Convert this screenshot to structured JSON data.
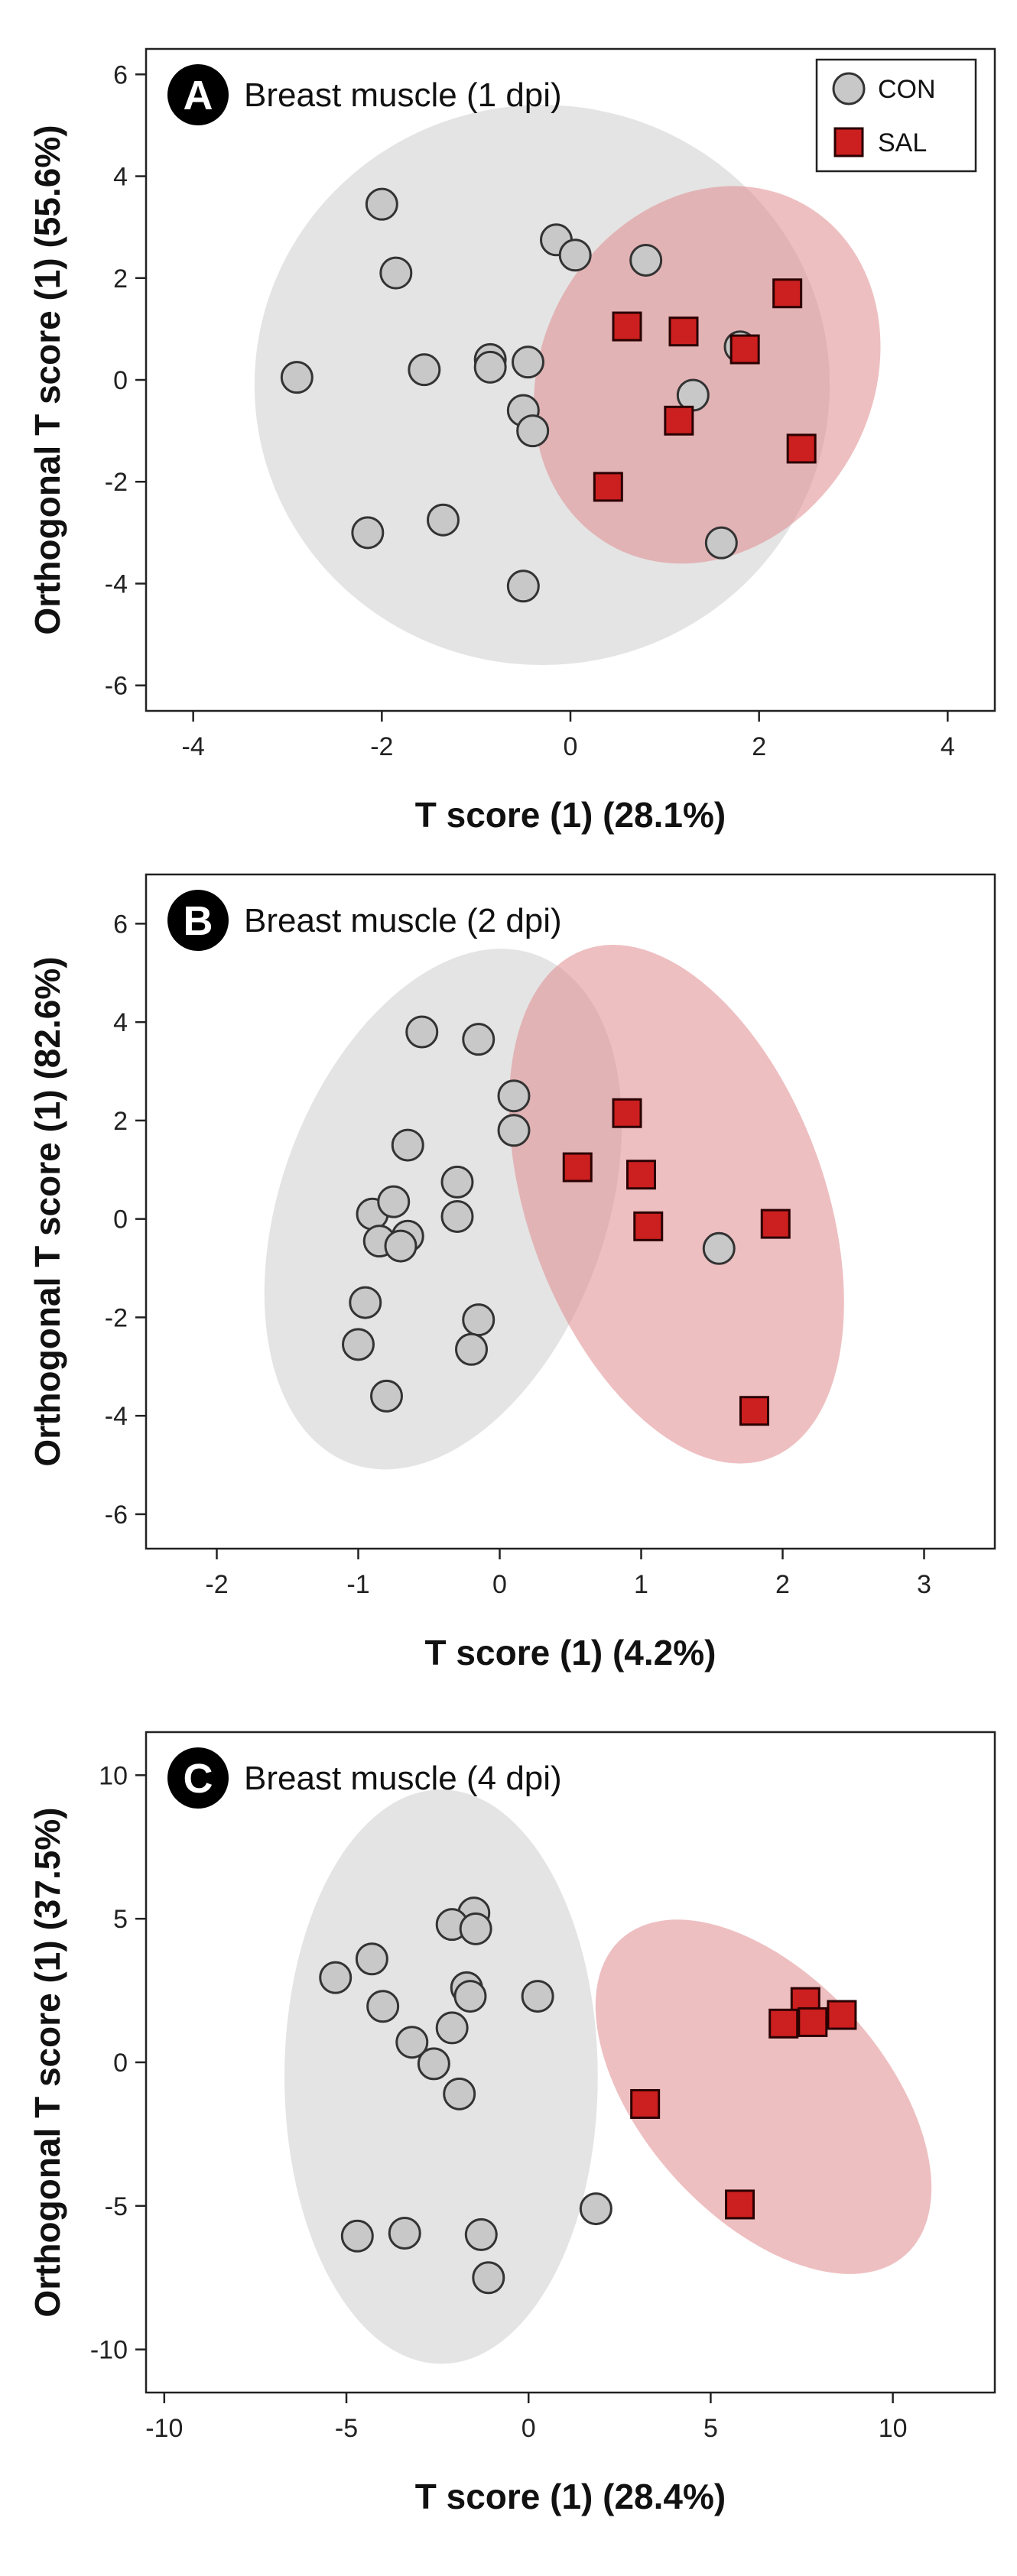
{
  "colors": {
    "con_fill": "#c8c8c8",
    "con_stroke": "#333333",
    "sal_fill": "#cc1f1f",
    "sal_stroke": "#2a0000",
    "con_ellipse": "#d4d4d4",
    "sal_ellipse": "#e08a8e"
  },
  "legend": {
    "items": [
      {
        "label": "CON",
        "marker": "circle"
      },
      {
        "label": "SAL",
        "marker": "square"
      }
    ]
  },
  "chart_data": [
    {
      "type": "scatter",
      "letter": "A",
      "title": "Breast muscle (1 dpi)",
      "xlabel": "T score (1) (28.1%)",
      "ylabel": "Orthogonal T score (1) (55.6%)",
      "xlim": [
        -4.5,
        4.5
      ],
      "ylim": [
        -6.5,
        6.5
      ],
      "xticks": [
        -4,
        -2,
        0,
        2,
        4
      ],
      "yticks": [
        -6,
        -4,
        -2,
        0,
        2,
        4,
        6
      ],
      "grid": false,
      "legend_position": "top-right",
      "series": [
        {
          "name": "CON",
          "marker": "circle",
          "points": [
            [
              -2.0,
              3.45
            ],
            [
              -1.85,
              2.1
            ],
            [
              -0.15,
              2.75
            ],
            [
              0.05,
              2.45
            ],
            [
              0.8,
              2.35
            ],
            [
              -2.9,
              0.05
            ],
            [
              -1.55,
              0.2
            ],
            [
              -0.85,
              0.4
            ],
            [
              -0.85,
              0.25
            ],
            [
              -0.45,
              0.35
            ],
            [
              -0.5,
              -0.6
            ],
            [
              -0.4,
              -1.0
            ],
            [
              1.3,
              -0.3
            ],
            [
              1.8,
              0.65
            ],
            [
              -2.15,
              -3.0
            ],
            [
              -1.35,
              -2.75
            ],
            [
              -0.5,
              -4.05
            ],
            [
              1.6,
              -3.2
            ]
          ]
        },
        {
          "name": "SAL",
          "marker": "square",
          "points": [
            [
              0.6,
              1.05
            ],
            [
              1.2,
              0.95
            ],
            [
              1.85,
              0.6
            ],
            [
              2.3,
              1.7
            ],
            [
              1.15,
              -0.8
            ],
            [
              2.45,
              -1.35
            ],
            [
              0.4,
              -2.1
            ]
          ]
        }
      ],
      "ellipses": [
        {
          "group": "CON",
          "cx": -0.3,
          "cy": -0.1,
          "rx": 3.05,
          "ry": 5.5,
          "angle": 0
        },
        {
          "group": "SAL",
          "cx": 1.45,
          "cy": 0.1,
          "rx": 1.75,
          "ry": 3.85,
          "angle": 30
        }
      ]
    },
    {
      "type": "scatter",
      "letter": "B",
      "title": "Breast muscle (2 dpi)",
      "xlabel": "T score (1) (4.2%)",
      "ylabel": "Orthogonal T score (1) (82.6%)",
      "xlim": [
        -2.5,
        3.5
      ],
      "ylim": [
        -6.7,
        7.0
      ],
      "xticks": [
        -2,
        -1,
        0,
        1,
        2,
        3
      ],
      "yticks": [
        -6,
        -4,
        -2,
        0,
        2,
        4,
        6
      ],
      "grid": false,
      "legend_position": "none",
      "series": [
        {
          "name": "CON",
          "marker": "circle",
          "points": [
            [
              -0.55,
              3.8
            ],
            [
              -0.15,
              3.65
            ],
            [
              0.1,
              2.5
            ],
            [
              0.1,
              1.8
            ],
            [
              -0.65,
              1.5
            ],
            [
              -0.3,
              0.75
            ],
            [
              -0.9,
              0.1
            ],
            [
              -0.75,
              0.35
            ],
            [
              -0.65,
              -0.35
            ],
            [
              -0.3,
              0.05
            ],
            [
              -0.85,
              -0.45
            ],
            [
              -0.7,
              -0.55
            ],
            [
              1.55,
              -0.6
            ],
            [
              -0.95,
              -1.7
            ],
            [
              -1.0,
              -2.55
            ],
            [
              -0.15,
              -2.05
            ],
            [
              -0.2,
              -2.65
            ],
            [
              -0.8,
              -3.6
            ]
          ]
        },
        {
          "name": "SAL",
          "marker": "square",
          "points": [
            [
              0.9,
              2.15
            ],
            [
              0.55,
              1.05
            ],
            [
              1.0,
              0.9
            ],
            [
              1.05,
              -0.15
            ],
            [
              1.95,
              -0.1
            ],
            [
              1.8,
              -3.9
            ]
          ]
        }
      ],
      "ellipses": [
        {
          "group": "CON",
          "cx": -0.4,
          "cy": 0.2,
          "rx": 1.15,
          "ry": 5.5,
          "angle": 20
        },
        {
          "group": "SAL",
          "cx": 1.25,
          "cy": 0.3,
          "rx": 1.05,
          "ry": 5.5,
          "angle": -20
        }
      ]
    },
    {
      "type": "scatter",
      "letter": "C",
      "title": "Breast muscle (4 dpi)",
      "xlabel": "T score (1) (28.4%)",
      "ylabel": "Orthogonal T score (1) (37.5%)",
      "xlim": [
        -10.5,
        12.8
      ],
      "ylim": [
        -11.5,
        11.5
      ],
      "xticks": [
        -10,
        -5,
        0,
        5,
        10
      ],
      "yticks": [
        -10,
        -5,
        0,
        5,
        10
      ],
      "grid": false,
      "legend_position": "none",
      "series": [
        {
          "name": "CON",
          "marker": "circle",
          "points": [
            [
              -1.5,
              5.2
            ],
            [
              -2.1,
              4.8
            ],
            [
              -1.45,
              4.65
            ],
            [
              -4.3,
              3.6
            ],
            [
              -5.3,
              2.95
            ],
            [
              -1.7,
              2.6
            ],
            [
              -1.6,
              2.3
            ],
            [
              0.25,
              2.3
            ],
            [
              -4.0,
              1.95
            ],
            [
              -2.1,
              1.2
            ],
            [
              -3.2,
              0.7
            ],
            [
              -2.6,
              -0.05
            ],
            [
              -1.9,
              -1.1
            ],
            [
              1.85,
              -5.1
            ],
            [
              -4.7,
              -6.05
            ],
            [
              -3.4,
              -5.95
            ],
            [
              -1.3,
              -6.0
            ],
            [
              -1.1,
              -7.5
            ]
          ]
        },
        {
          "name": "SAL",
          "marker": "square",
          "points": [
            [
              7.6,
              2.1
            ],
            [
              8.6,
              1.65
            ],
            [
              7.0,
              1.35
            ],
            [
              7.8,
              1.4
            ],
            [
              3.2,
              -1.45
            ],
            [
              5.8,
              -4.95
            ]
          ]
        }
      ],
      "ellipses": [
        {
          "group": "CON",
          "cx": -2.4,
          "cy": -0.5,
          "rx": 4.3,
          "ry": 10.0,
          "angle": 0
        },
        {
          "group": "SAL",
          "cx": 6.45,
          "cy": -1.2,
          "rx": 3.3,
          "ry": 7.4,
          "angle": -42
        }
      ]
    }
  ]
}
